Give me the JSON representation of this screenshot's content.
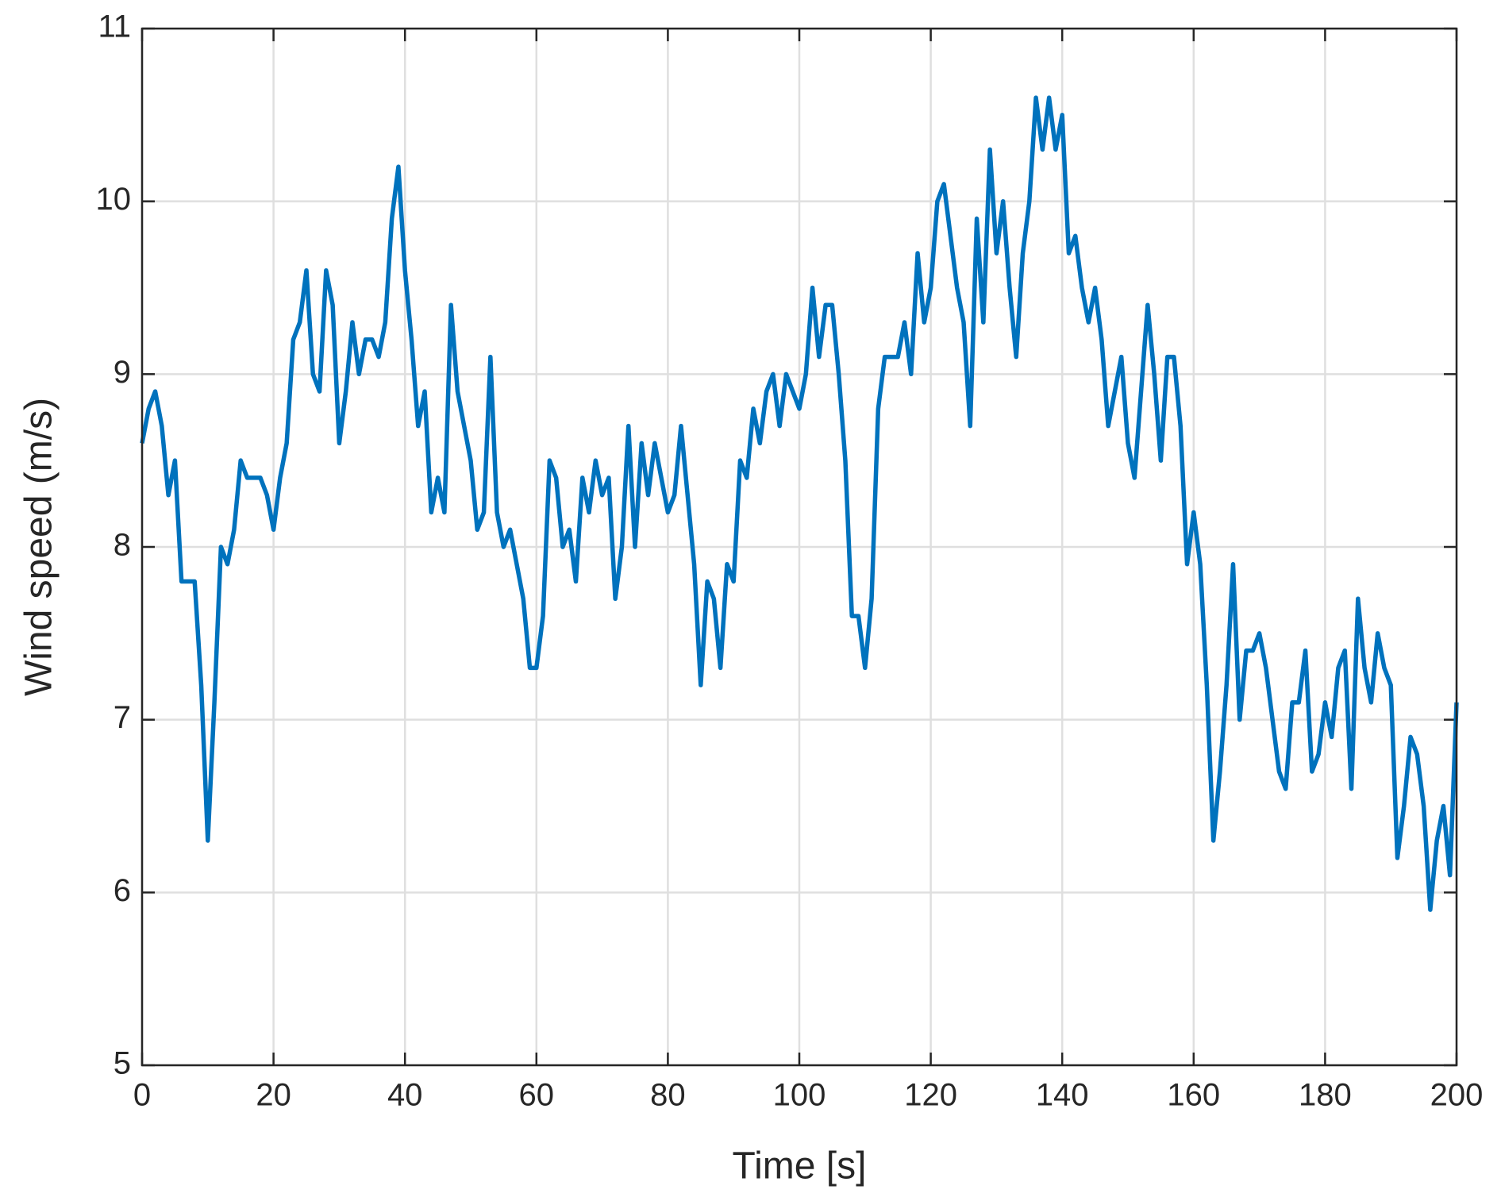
{
  "chart_data": {
    "type": "line",
    "xlabel": "Time [s]",
    "ylabel": "Wind speed (m/s)",
    "xlim": [
      0,
      200
    ],
    "ylim": [
      5,
      11
    ],
    "xticks": [
      0,
      20,
      40,
      60,
      80,
      100,
      120,
      140,
      160,
      180,
      200
    ],
    "yticks": [
      5,
      6,
      7,
      8,
      9,
      10,
      11
    ],
    "grid": true,
    "x": [
      0,
      1,
      2,
      3,
      4,
      5,
      6,
      7,
      8,
      9,
      10,
      11,
      12,
      13,
      14,
      15,
      16,
      17,
      18,
      19,
      20,
      21,
      22,
      23,
      24,
      25,
      26,
      27,
      28,
      29,
      30,
      31,
      32,
      33,
      34,
      35,
      36,
      37,
      38,
      39,
      40,
      41,
      42,
      43,
      44,
      45,
      46,
      47,
      48,
      49,
      50,
      51,
      52,
      53,
      54,
      55,
      56,
      57,
      58,
      59,
      60,
      61,
      62,
      63,
      64,
      65,
      66,
      67,
      68,
      69,
      70,
      71,
      72,
      73,
      74,
      75,
      76,
      77,
      78,
      79,
      80,
      81,
      82,
      83,
      84,
      85,
      86,
      87,
      88,
      89,
      90,
      91,
      92,
      93,
      94,
      95,
      96,
      97,
      98,
      99,
      100,
      101,
      102,
      103,
      104,
      105,
      106,
      107,
      108,
      109,
      110,
      111,
      112,
      113,
      114,
      115,
      116,
      117,
      118,
      119,
      120,
      121,
      122,
      123,
      124,
      125,
      126,
      127,
      128,
      129,
      130,
      131,
      132,
      133,
      134,
      135,
      136,
      137,
      138,
      139,
      140,
      141,
      142,
      143,
      144,
      145,
      146,
      147,
      148,
      149,
      150,
      151,
      152,
      153,
      154,
      155,
      156,
      157,
      158,
      159,
      160,
      161,
      162,
      163,
      164,
      165,
      166,
      167,
      168,
      169,
      170,
      171,
      172,
      173,
      174,
      175,
      176,
      177,
      178,
      179,
      180,
      181,
      182,
      183,
      184,
      185,
      186,
      187,
      188,
      189,
      190,
      191,
      192,
      193,
      194,
      195,
      196,
      197,
      198,
      199,
      200
    ],
    "series": [
      {
        "color": "#0072bd",
        "values": [
          8.6,
          8.8,
          8.9,
          8.7,
          8.3,
          8.5,
          7.8,
          7.8,
          7.8,
          7.2,
          6.3,
          7.1,
          8.0,
          7.9,
          8.1,
          8.5,
          8.4,
          8.4,
          8.4,
          8.3,
          8.1,
          8.4,
          8.6,
          9.2,
          9.3,
          9.6,
          9.0,
          8.9,
          9.6,
          9.4,
          8.6,
          8.9,
          9.3,
          9.0,
          9.2,
          9.2,
          9.1,
          9.3,
          9.9,
          10.2,
          9.6,
          9.2,
          8.7,
          8.9,
          8.2,
          8.4,
          8.2,
          9.4,
          8.9,
          8.7,
          8.5,
          8.1,
          8.2,
          9.1,
          8.2,
          8.0,
          8.1,
          7.9,
          7.7,
          7.3,
          7.3,
          7.6,
          8.5,
          8.4,
          8.0,
          8.1,
          7.8,
          8.4,
          8.2,
          8.5,
          8.3,
          8.4,
          7.7,
          8.0,
          8.7,
          8.0,
          8.6,
          8.3,
          8.6,
          8.4,
          8.2,
          8.3,
          8.7,
          8.3,
          7.9,
          7.2,
          7.8,
          7.7,
          7.3,
          7.9,
          7.8,
          8.5,
          8.4,
          8.8,
          8.6,
          8.9,
          9.0,
          8.7,
          9.0,
          8.9,
          8.8,
          9.0,
          9.5,
          9.1,
          9.4,
          9.4,
          9.0,
          8.5,
          7.6,
          7.6,
          7.3,
          7.7,
          8.8,
          9.1,
          9.1,
          9.1,
          9.3,
          9.0,
          9.7,
          9.3,
          9.5,
          10.0,
          10.1,
          9.8,
          9.5,
          9.3,
          8.7,
          9.9,
          9.3,
          10.3,
          9.7,
          10.0,
          9.5,
          9.1,
          9.7,
          10.0,
          10.6,
          10.3,
          10.6,
          10.3,
          10.5,
          9.7,
          9.8,
          9.5,
          9.3,
          9.5,
          9.2,
          8.7,
          8.9,
          9.1,
          8.6,
          8.4,
          8.9,
          9.4,
          9.0,
          8.5,
          9.1,
          9.1,
          8.7,
          7.9,
          8.2,
          7.9,
          7.2,
          6.3,
          6.7,
          7.2,
          7.9,
          7.0,
          7.4,
          7.4,
          7.5,
          7.3,
          7.0,
          6.7,
          6.6,
          7.1,
          7.1,
          7.4,
          6.7,
          6.8,
          7.1,
          6.9,
          7.3,
          7.4,
          6.6,
          7.7,
          7.3,
          7.1,
          7.5,
          7.3,
          7.2,
          6.2,
          6.5,
          6.9,
          6.8,
          6.5,
          5.9,
          6.3,
          6.5,
          6.1,
          7.1
        ]
      }
    ]
  }
}
